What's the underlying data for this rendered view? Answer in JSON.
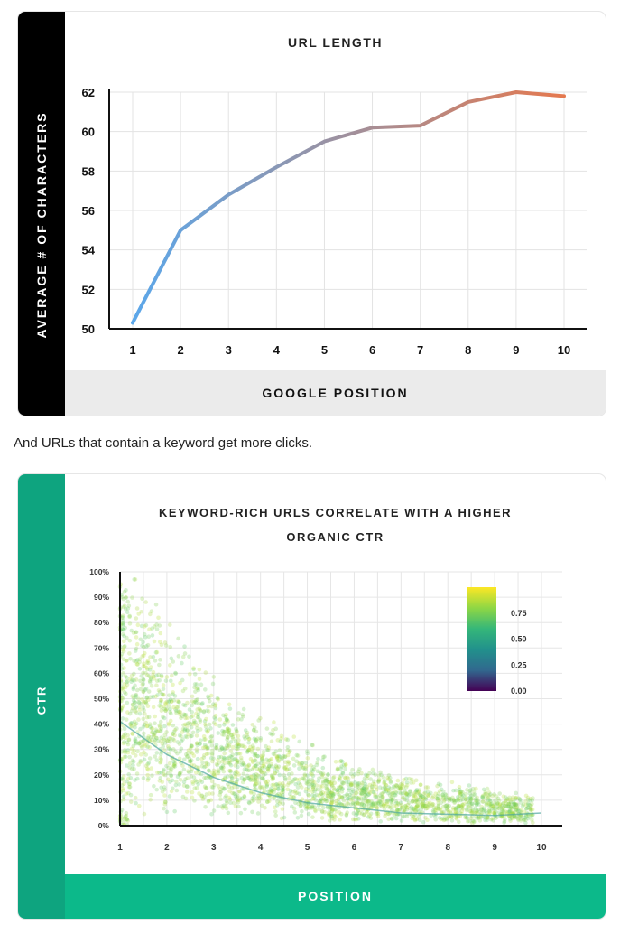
{
  "caption": "And URLs that contain a keyword get more clicks.",
  "chart_data": [
    {
      "type": "line",
      "title": "URL LENGTH",
      "xlabel": "GOOGLE POSITION",
      "ylabel": "AVERAGE # OF CHARACTERS",
      "x": [
        1,
        2,
        3,
        4,
        5,
        6,
        7,
        8,
        9,
        10
      ],
      "y": [
        50.3,
        55.0,
        56.8,
        58.2,
        59.5,
        60.2,
        60.3,
        61.5,
        62.0,
        61.8
      ],
      "xticks": [
        "1",
        "2",
        "3",
        "4",
        "5",
        "6",
        "7",
        "8",
        "9",
        "10"
      ],
      "yticks": [
        "50",
        "52",
        "54",
        "56",
        "58",
        "60",
        "62"
      ],
      "ylim": [
        50,
        62
      ],
      "xlim": [
        1,
        10
      ],
      "grid": true,
      "line_colors": {
        "start": "#5ba7ea",
        "end": "#e5794f"
      }
    },
    {
      "type": "scatter",
      "title_lines": [
        "KEYWORD-RICH URLS CORRELATE WITH A HIGHER",
        "ORGANIC CTR"
      ],
      "xlabel": "POSITION",
      "ylabel": "CTR",
      "xticks": [
        "1",
        "2",
        "3",
        "4",
        "5",
        "6",
        "7",
        "8",
        "9",
        "10"
      ],
      "yticks": [
        "0%",
        "10%",
        "20%",
        "30%",
        "40%",
        "50%",
        "60%",
        "70%",
        "80%",
        "90%",
        "100%"
      ],
      "xlim": [
        1,
        10
      ],
      "ylim": [
        0,
        1
      ],
      "grid": true,
      "trend_line": {
        "x": [
          1,
          2,
          3,
          4,
          5,
          6,
          7,
          8,
          9,
          10
        ],
        "y": [
          0.41,
          0.28,
          0.19,
          0.13,
          0.09,
          0.07,
          0.05,
          0.045,
          0.04,
          0.05
        ]
      },
      "point_cloud": {
        "x_range": [
          1,
          10
        ],
        "density": "high near position 1, decaying with position",
        "point_color": "#7ccc4c"
      },
      "colorbar": {
        "ticks": [
          "0.75",
          "0.50",
          "0.25",
          "0.00"
        ],
        "range": [
          0,
          1
        ],
        "palette": [
          "#440154",
          "#31688e",
          "#21918c",
          "#35b779",
          "#8fd744",
          "#fde725"
        ],
        "placement": "top-right"
      }
    }
  ]
}
